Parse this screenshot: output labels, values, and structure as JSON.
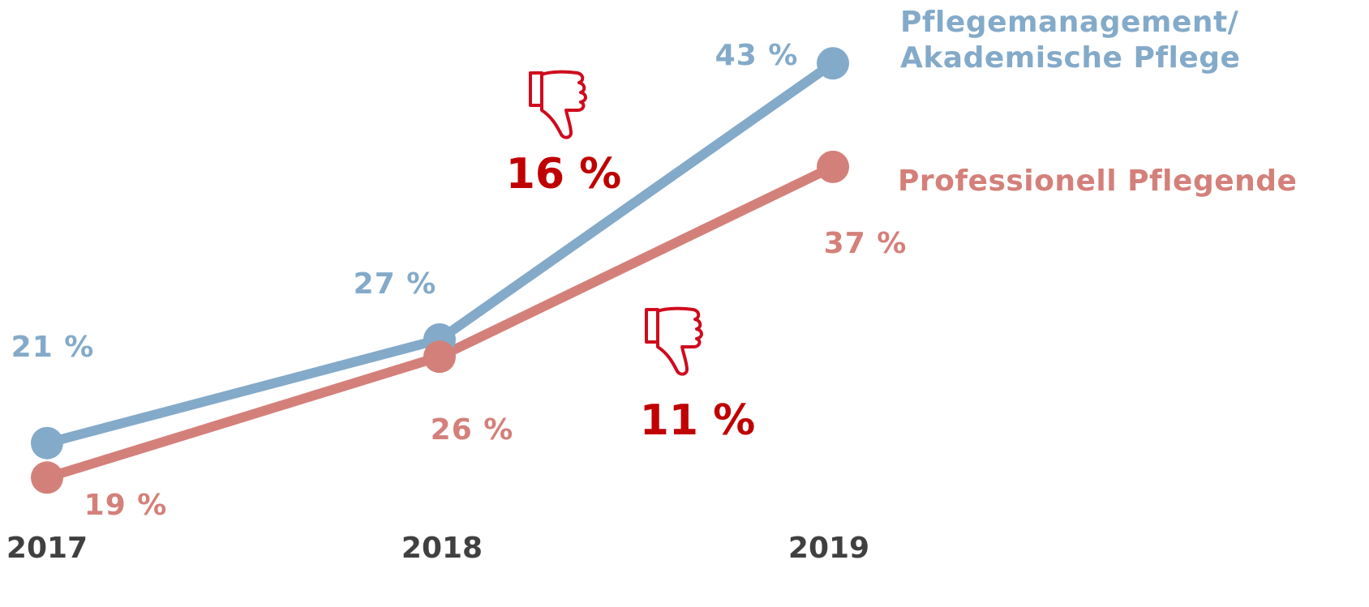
{
  "chart_data": {
    "type": "line",
    "categories": [
      "2017",
      "2018",
      "2019"
    ],
    "ylim": [
      15,
      45
    ],
    "series": [
      {
        "name": "Pflegemanagement/ Akademische Pflege",
        "color": "#84aac9",
        "values": [
          21,
          27,
          43
        ],
        "value_labels": [
          "21 %",
          "27 %",
          "43 %"
        ]
      },
      {
        "name": "Professionell Pflegende",
        "color": "#d4807a",
        "values": [
          19,
          26,
          37
        ],
        "value_labels": [
          "19 %",
          "26 %",
          "37 %"
        ]
      }
    ],
    "annotations": [
      "16 %",
      "11 %"
    ],
    "annotation_color": "#c00000"
  }
}
